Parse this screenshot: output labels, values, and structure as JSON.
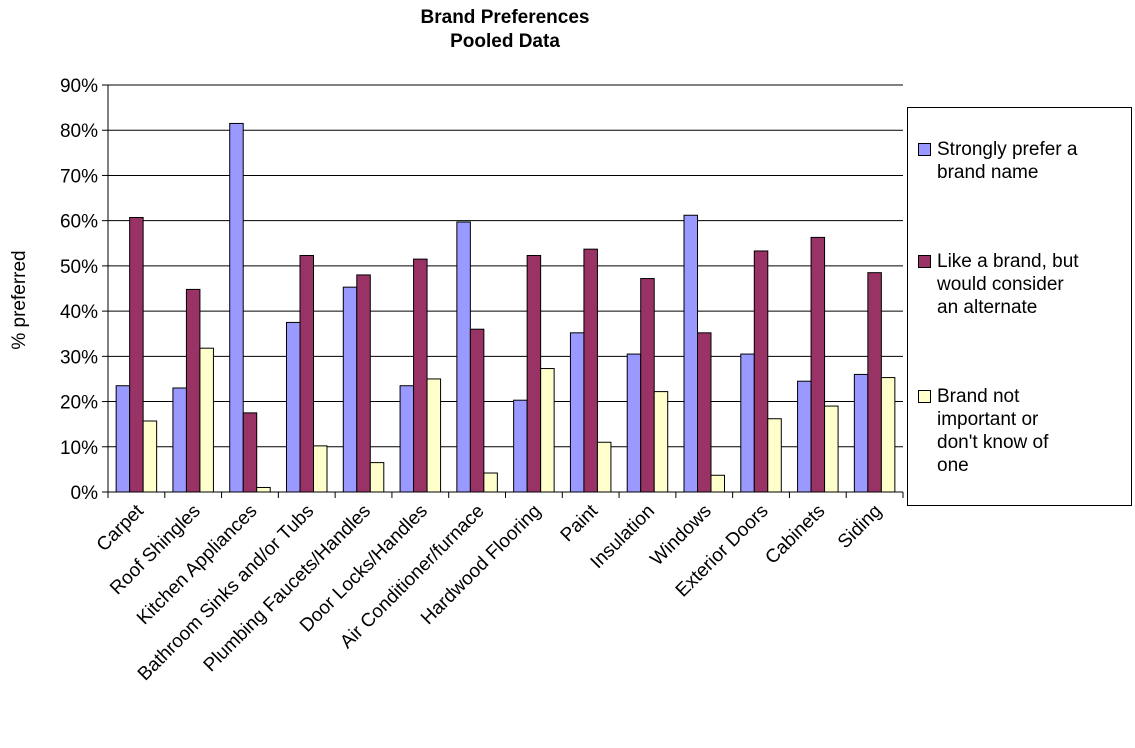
{
  "chart_data": {
    "type": "bar",
    "title": [
      "Brand Preferences",
      "Pooled Data"
    ],
    "ylabel": "% preferred",
    "xlabel": "",
    "ylim": [
      0,
      0.9
    ],
    "yticks": [
      "0%",
      "10%",
      "20%",
      "30%",
      "40%",
      "50%",
      "60%",
      "70%",
      "80%",
      "90%"
    ],
    "grid": true,
    "legend_position": "right",
    "categories": [
      "Carpet",
      "Roof Shingles",
      "Kitchen Appliances",
      "Bathroom Sinks and/or Tubs",
      "Plumbing Faucets/Handles",
      "Door Locks/Handles",
      "Air Conditioner/furnace",
      "Hardwood Flooring",
      "Paint",
      "Insulation",
      "Windows",
      "Exterior Doors",
      "Cabinets",
      "Siding"
    ],
    "series": [
      {
        "name": "Strongly prefer a brand name",
        "color": "#9999ff",
        "values": [
          0.235,
          0.23,
          0.815,
          0.375,
          0.453,
          0.235,
          0.597,
          0.203,
          0.352,
          0.305,
          0.612,
          0.305,
          0.245,
          0.26
        ]
      },
      {
        "name": "Like a brand, but would consider an alternate",
        "color": "#993366",
        "values": [
          0.607,
          0.448,
          0.175,
          0.523,
          0.48,
          0.515,
          0.36,
          0.523,
          0.537,
          0.472,
          0.352,
          0.533,
          0.563,
          0.485
        ]
      },
      {
        "name": "Brand not important or don't know of one",
        "color": "#ffffcc",
        "values": [
          0.157,
          0.318,
          0.01,
          0.102,
          0.065,
          0.25,
          0.042,
          0.273,
          0.11,
          0.222,
          0.037,
          0.162,
          0.19,
          0.253
        ]
      }
    ]
  },
  "legend": {
    "entries": [
      {
        "label": "Strongly prefer a\nbrand name",
        "color": "#9999ff"
      },
      {
        "label": "Like a brand, but\nwould consider\nan alternate",
        "color": "#993366"
      },
      {
        "label": "Brand not\nimportant or\ndon't know of\none",
        "color": "#ffffcc"
      }
    ]
  }
}
